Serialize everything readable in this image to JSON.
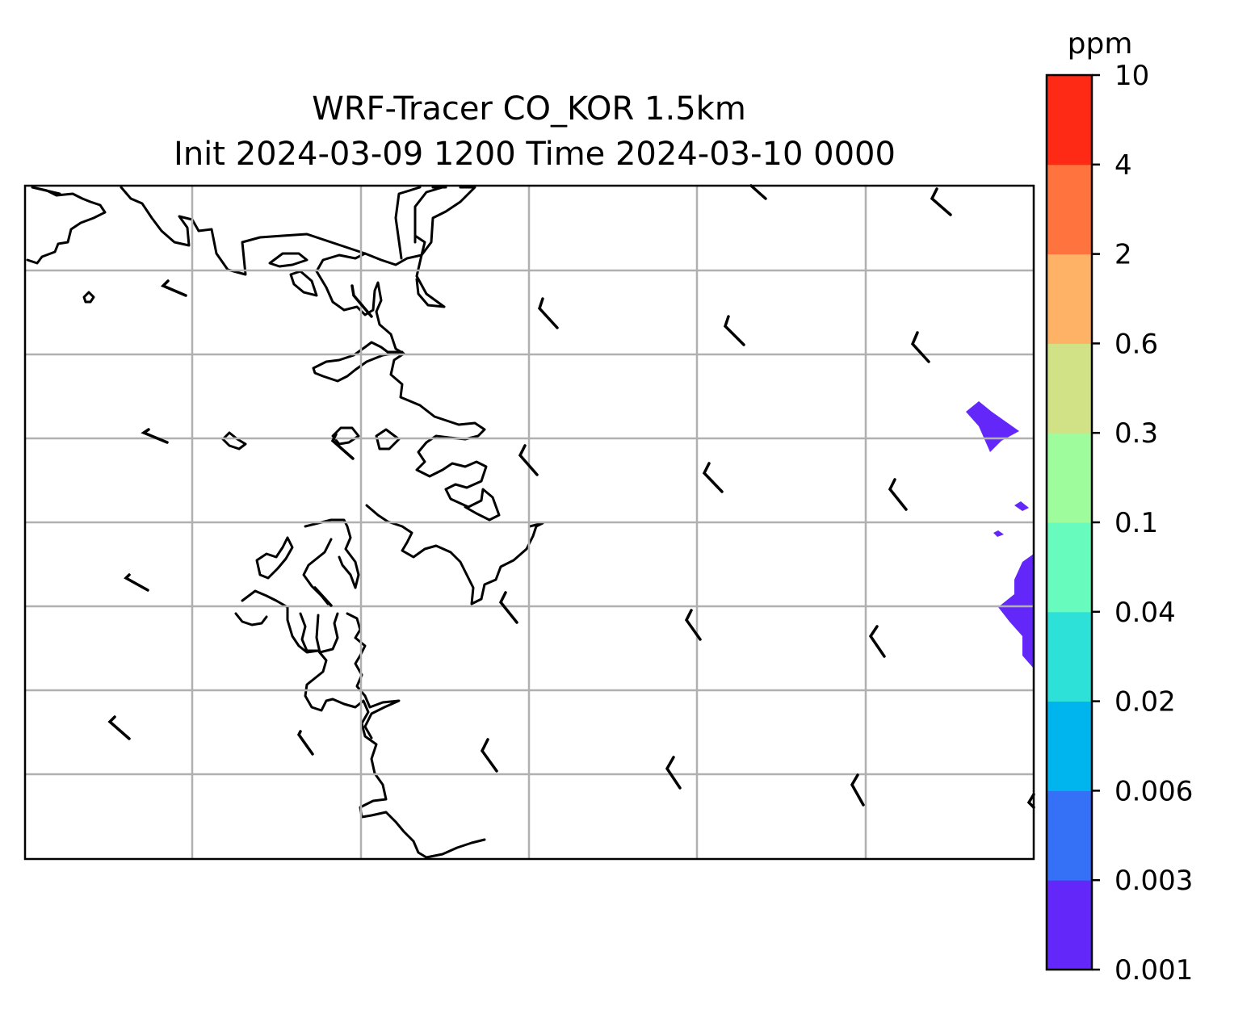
{
  "title": {
    "line1": "WRF-Tracer CO_KOR 1.5km",
    "line2": "Init 2024-03-09 1200 Time 2024-03-10 0000"
  },
  "map": {
    "gridlines": true,
    "gridline_color": "#b0b0b0",
    "coastline_color": "#000000",
    "wind_barbs": true
  },
  "colorbar": {
    "unit": "ppm",
    "levels": [
      "0.001",
      "0.003",
      "0.006",
      "0.02",
      "0.04",
      "0.1",
      "0.3",
      "0.6",
      "2",
      "4",
      "10"
    ],
    "colors": [
      "#6328f9",
      "#3471f6",
      "#00b4ed",
      "#2ee1d8",
      "#67fcbd",
      "#9ffc9c",
      "#d1e286",
      "#fdb265",
      "#ff733e",
      "#ff2a16"
    ]
  }
}
